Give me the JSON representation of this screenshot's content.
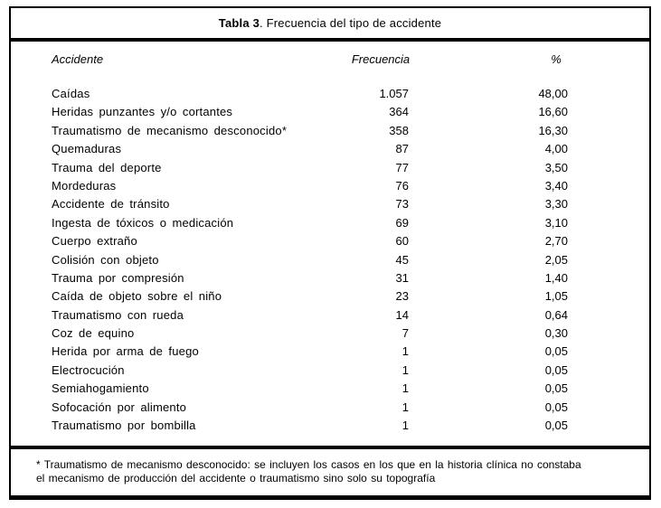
{
  "table": {
    "title_bold": "Tabla 3",
    "title_rest": ". Frecuencia del tipo de accidente",
    "columns": {
      "accident": "Accidente",
      "frequency": "Frecuencia",
      "percent": "%"
    },
    "rows": [
      {
        "label": "Caídas",
        "freq": "1.057",
        "pct": "48,00"
      },
      {
        "label": "Heridas punzantes y/o cortantes",
        "freq": "364",
        "pct": "16,60"
      },
      {
        "label": "Traumatismo de mecanismo desconocido*",
        "freq": "358",
        "pct": "16,30"
      },
      {
        "label": "Quemaduras",
        "freq": "87",
        "pct": "4,00"
      },
      {
        "label": "Trauma del deporte",
        "freq": "77",
        "pct": "3,50"
      },
      {
        "label": "Mordeduras",
        "freq": "76",
        "pct": "3,40"
      },
      {
        "label": "Accidente de tránsito",
        "freq": "73",
        "pct": "3,30"
      },
      {
        "label": "Ingesta de tóxicos o medicación",
        "freq": "69",
        "pct": "3,10"
      },
      {
        "label": "Cuerpo extraño",
        "freq": "60",
        "pct": "2,70"
      },
      {
        "label": "Colisión con objeto",
        "freq": "45",
        "pct": "2,05"
      },
      {
        "label": "Trauma por compresión",
        "freq": "31",
        "pct": "1,40"
      },
      {
        "label": "Caída de objeto sobre el niño",
        "freq": "23",
        "pct": "1,05"
      },
      {
        "label": "Traumatismo con rueda",
        "freq": "14",
        "pct": "0,64"
      },
      {
        "label": "Coz de equino",
        "freq": "7",
        "pct": "0,30"
      },
      {
        "label": "Herida por arma de fuego",
        "freq": "1",
        "pct": "0,05"
      },
      {
        "label": "Electrocución",
        "freq": "1",
        "pct": "0,05"
      },
      {
        "label": "Semiahogamiento",
        "freq": "1",
        "pct": "0,05"
      },
      {
        "label": "Sofocación por alimento",
        "freq": "1",
        "pct": "0,05"
      },
      {
        "label": "Traumatismo por bombilla",
        "freq": "1",
        "pct": "0,05"
      }
    ],
    "footnote_line1": "* Traumatismo de mecanismo desconocido: se incluyen los casos en los que en la historia clínica no constaba",
    "footnote_line2": "el mecanismo de producción del accidente o traumatismo sino solo su topografía"
  },
  "chart_data": {
    "type": "table",
    "title": "Tabla 3. Frecuencia del tipo de accidente",
    "columns": [
      "Accidente",
      "Frecuencia",
      "%"
    ],
    "rows": [
      [
        "Caídas",
        "1.057",
        "48,00"
      ],
      [
        "Heridas punzantes y/o cortantes",
        "364",
        "16,60"
      ],
      [
        "Traumatismo de mecanismo desconocido*",
        "358",
        "16,30"
      ],
      [
        "Quemaduras",
        "87",
        "4,00"
      ],
      [
        "Trauma del deporte",
        "77",
        "3,50"
      ],
      [
        "Mordeduras",
        "76",
        "3,40"
      ],
      [
        "Accidente de tránsito",
        "73",
        "3,30"
      ],
      [
        "Ingesta de tóxicos o medicación",
        "69",
        "3,10"
      ],
      [
        "Cuerpo extraño",
        "60",
        "2,70"
      ],
      [
        "Colisión con objeto",
        "45",
        "2,05"
      ],
      [
        "Trauma por compresión",
        "31",
        "1,40"
      ],
      [
        "Caída de objeto sobre el niño",
        "23",
        "1,05"
      ],
      [
        "Traumatismo con rueda",
        "14",
        "0,64"
      ],
      [
        "Coz de equino",
        "7",
        "0,30"
      ],
      [
        "Herida por arma de fuego",
        "1",
        "0,05"
      ],
      [
        "Electrocución",
        "1",
        "0,05"
      ],
      [
        "Semiahogamiento",
        "1",
        "0,05"
      ],
      [
        "Sofocación por alimento",
        "1",
        "0,05"
      ],
      [
        "Traumatismo por bombilla",
        "1",
        "0,05"
      ]
    ],
    "footnote": "* Traumatismo de mecanismo desconocido: se incluyen los casos en los que en la historia clínica no constaba el mecanismo de producción del accidente o traumatismo sino solo su topografía"
  }
}
